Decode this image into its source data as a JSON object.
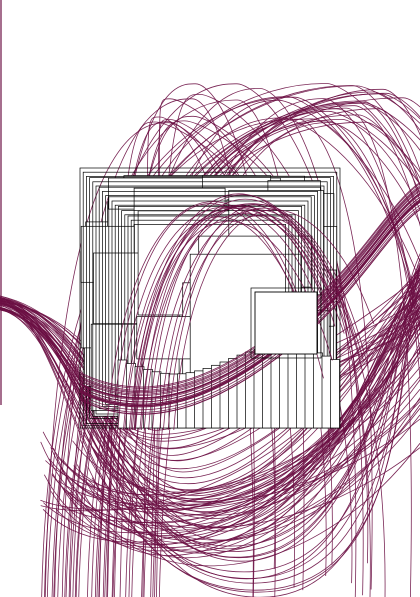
{
  "artwork": {
    "stroke_color": "#6b0f44",
    "outline_color": "#000000",
    "background_color": "#ffffff",
    "fill_color": "#ffffff"
  }
}
